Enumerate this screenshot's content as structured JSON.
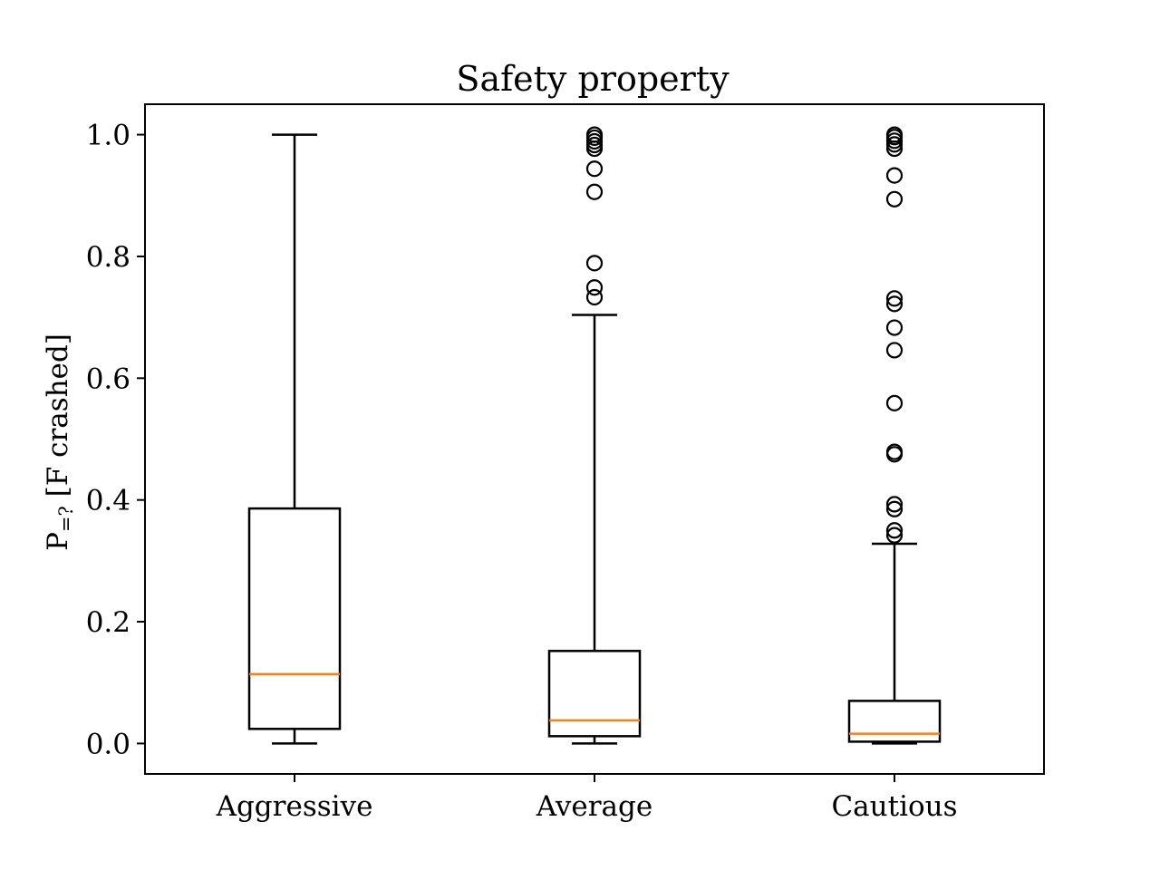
{
  "chart_data": {
    "type": "boxplot",
    "title": "Safety property",
    "xlabel": "",
    "ylabel": "P=? [F crashed]",
    "ylabel_parts": {
      "main": "P",
      "sub": "=?",
      "rest": " [F crashed]"
    },
    "ylim": [
      -0.05,
      1.05
    ],
    "yticks": [
      0.0,
      0.2,
      0.4,
      0.6,
      0.8,
      1.0
    ],
    "ytick_labels": [
      "0.0",
      "0.2",
      "0.4",
      "0.6",
      "0.8",
      "1.0"
    ],
    "grid": false,
    "categories": [
      "Aggressive",
      "Average",
      "Cautious"
    ],
    "boxes": [
      {
        "name": "Aggressive",
        "whisker_low": 0.0,
        "q1": 0.024,
        "median": 0.114,
        "q3": 0.386,
        "whisker_high": 1.0,
        "fliers": []
      },
      {
        "name": "Average",
        "whisker_low": 0.0,
        "q1": 0.012,
        "median": 0.038,
        "q3": 0.152,
        "whisker_high": 0.704,
        "fliers": [
          0.733,
          0.749,
          0.789,
          0.906,
          0.944,
          0.977,
          0.983,
          0.989,
          0.995,
          1.0
        ]
      },
      {
        "name": "Cautious",
        "whisker_low": 0.0,
        "q1": 0.003,
        "median": 0.016,
        "q3": 0.07,
        "whisker_high": 0.328,
        "fliers": [
          0.342,
          0.35,
          0.385,
          0.393,
          0.475,
          0.479,
          0.559,
          0.646,
          0.683,
          0.722,
          0.731,
          0.894,
          0.933,
          0.977,
          0.984,
          0.99,
          0.996,
          1.0
        ]
      }
    ],
    "colors": {
      "box": "#000000",
      "median": "#ff7f0e",
      "flier": "#000000"
    }
  }
}
